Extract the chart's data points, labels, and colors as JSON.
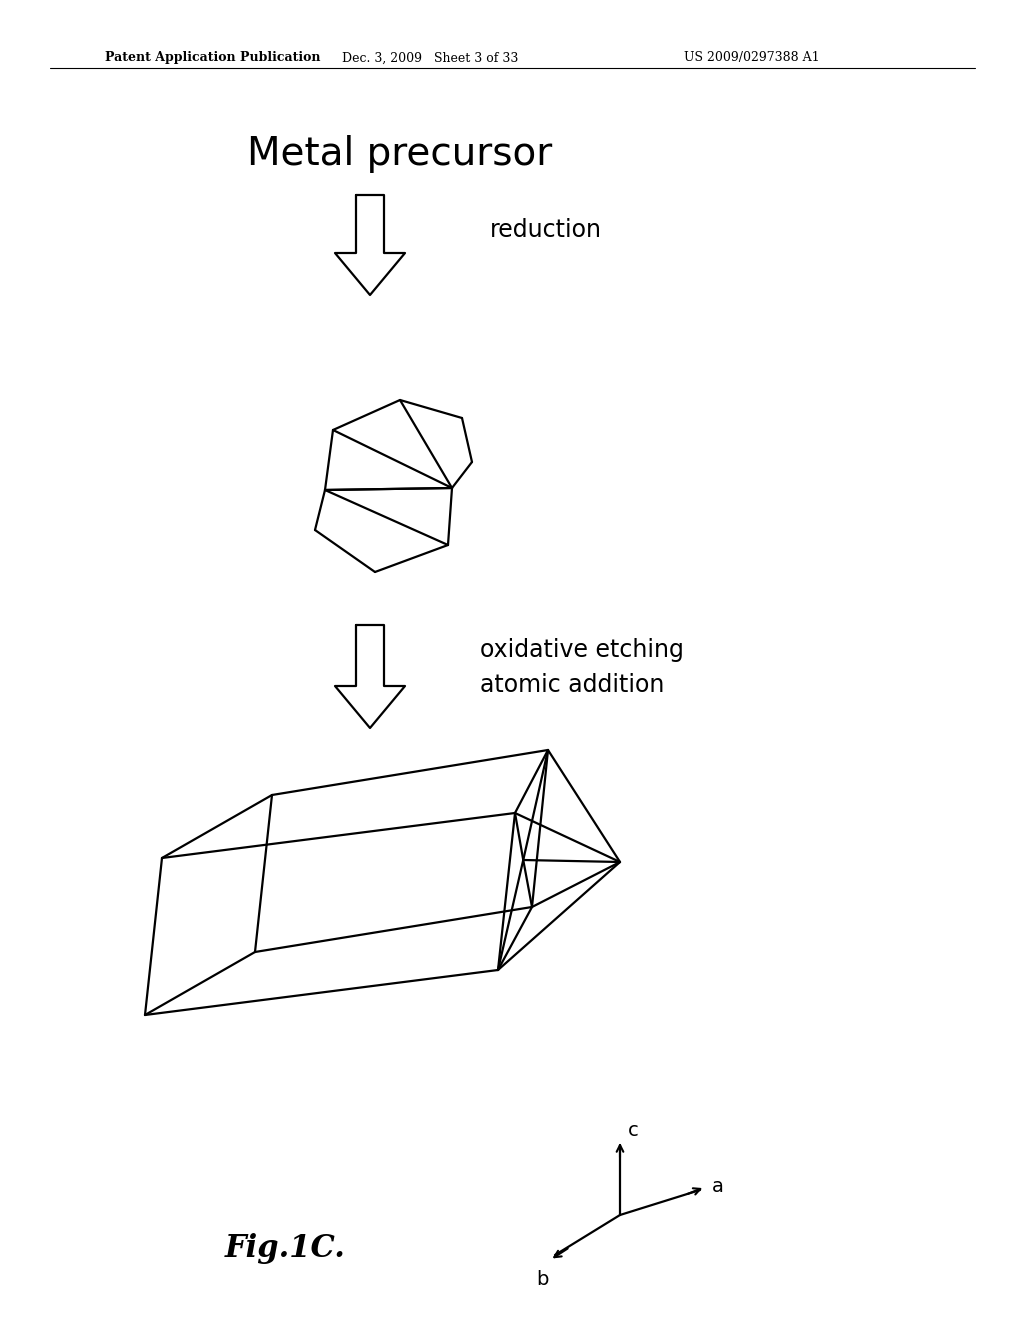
{
  "bg_color": "#ffffff",
  "header_left": "Patent Application Publication",
  "header_mid": "Dec. 3, 2009   Sheet 3 of 33",
  "header_right": "US 2009/0297388 A1",
  "title_text": "Metal precursor",
  "label1": "reduction",
  "label2": "oxidative etching\natomic addition",
  "fig_label": "Fig.1C.",
  "lw": 1.6
}
